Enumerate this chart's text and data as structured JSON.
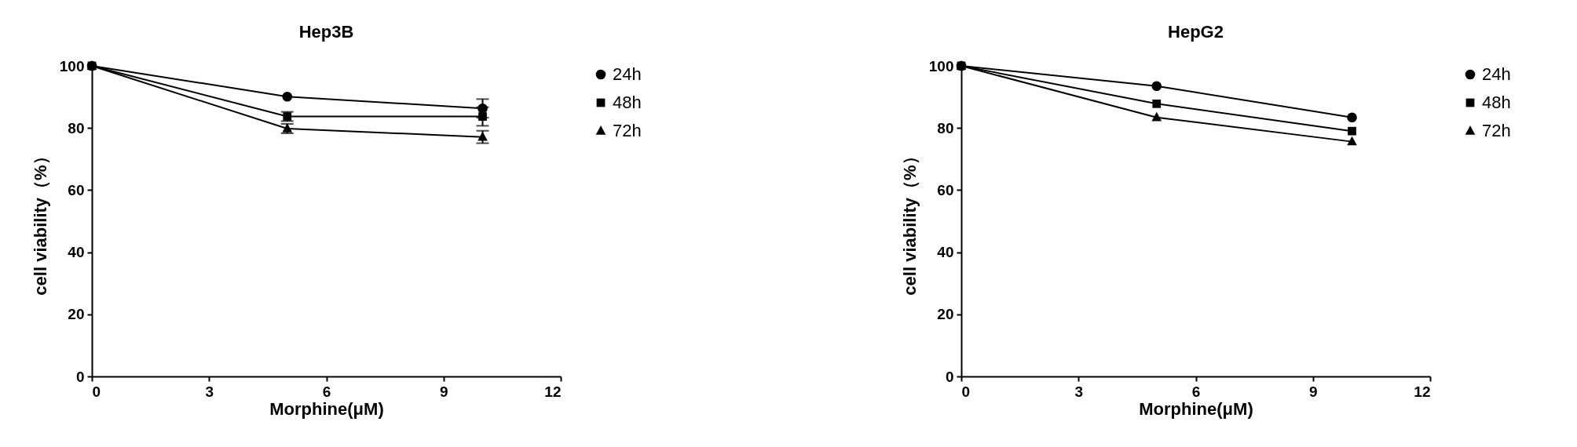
{
  "chart_data": [
    {
      "type": "line",
      "title": "Hep3B",
      "xlabel": "Morphine(μM)",
      "ylabel": "cell viability（%）",
      "x": [
        0,
        5,
        10
      ],
      "xlim": [
        0,
        12
      ],
      "xticks": [
        0,
        3,
        6,
        9,
        12
      ],
      "ylim": [
        0,
        100
      ],
      "yticks": [
        0,
        20,
        40,
        60,
        80,
        100
      ],
      "legend": "right",
      "grid": false,
      "series": [
        {
          "name": "24h",
          "color": "#000000",
          "marker": "circle",
          "values": [
            100,
            90.1,
            86.3
          ],
          "errors": [
            null,
            null,
            3
          ]
        },
        {
          "name": "48h",
          "color": "#000000",
          "marker": "square",
          "values": [
            100,
            83.7,
            83.7
          ],
          "errors": [
            null,
            1.5,
            3
          ]
        },
        {
          "name": "72h",
          "color": "#000000",
          "marker": "triangle",
          "values": [
            100,
            79.8,
            77.1
          ],
          "errors": [
            null,
            1.5,
            2
          ]
        }
      ]
    },
    {
      "type": "line",
      "title": "HepG2",
      "xlabel": "Morphine(μM)",
      "ylabel": "cell viability（%）",
      "x": [
        0,
        5,
        10
      ],
      "xlim": [
        0,
        12
      ],
      "xticks": [
        0,
        3,
        6,
        9,
        12
      ],
      "ylim": [
        0,
        100
      ],
      "yticks": [
        0,
        20,
        40,
        60,
        80,
        100
      ],
      "legend": "right",
      "grid": false,
      "series": [
        {
          "name": "24h",
          "color": "#000000",
          "marker": "circle",
          "values": [
            100,
            93.5,
            83.4
          ]
        },
        {
          "name": "48h",
          "color": "#000000",
          "marker": "square",
          "values": [
            100,
            87.8,
            79.0
          ]
        },
        {
          "name": "72h",
          "color": "#000000",
          "marker": "triangle",
          "values": [
            100,
            83.4,
            75.6
          ]
        }
      ]
    }
  ]
}
